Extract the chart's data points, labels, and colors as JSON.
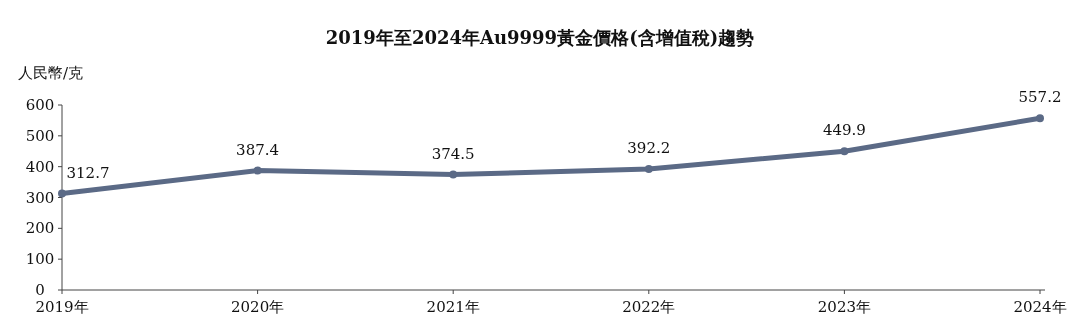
{
  "chart_data": {
    "type": "line",
    "title": "2019年至2024年Au9999黃金價格(含增值稅)趨勢",
    "ylabel": "人民幣/克",
    "categories": [
      "2019年",
      "2020年",
      "2021年",
      "2022年",
      "2023年",
      "2024年"
    ],
    "values": [
      312.7,
      387.4,
      374.5,
      392.2,
      449.9,
      557.2
    ],
    "color": "#5b6a86",
    "marker": "circle",
    "data_labels": true,
    "grid": false,
    "ylim": [
      0,
      600
    ],
    "yticks": [
      0,
      100,
      200,
      300,
      400,
      500,
      600
    ]
  }
}
